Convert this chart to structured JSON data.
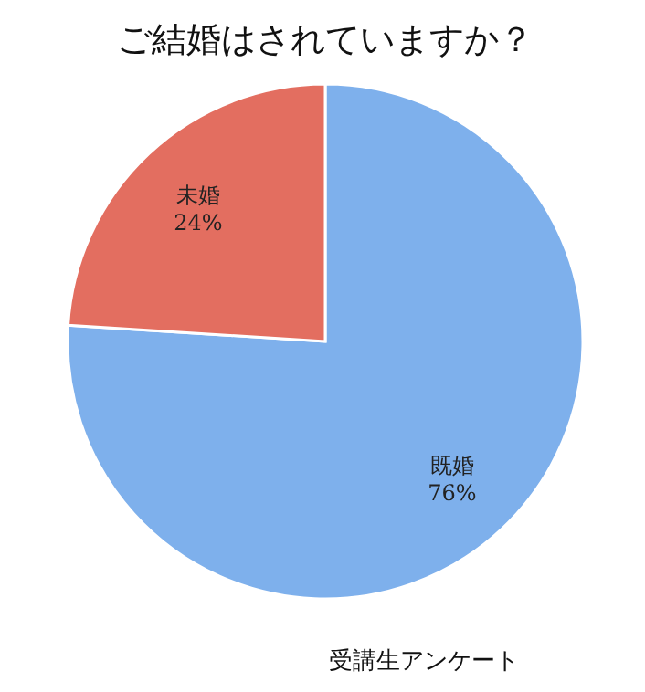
{
  "chart_data": {
    "type": "pie",
    "title": "ご結婚はされていますか？",
    "categories": [
      "既婚",
      "未婚"
    ],
    "values": [
      76,
      24
    ],
    "colors": [
      "#7eb0ec",
      "#e36e60"
    ],
    "value_labels": [
      "76%",
      "24%"
    ],
    "annotations": [
      "受講生アンケート"
    ]
  }
}
